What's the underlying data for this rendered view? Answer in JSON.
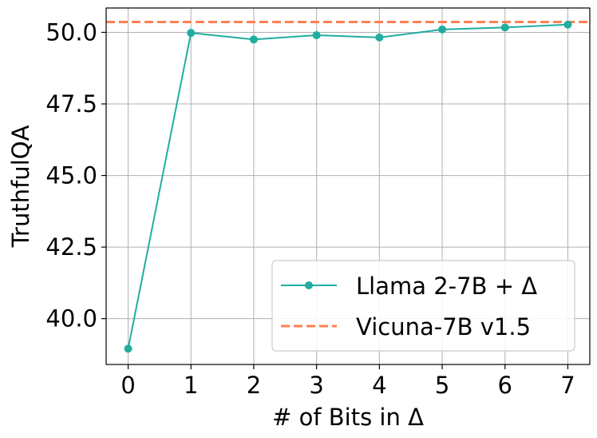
{
  "chart_data": {
    "type": "line",
    "title": "",
    "xlabel": "# of Bits in Δ",
    "ylabel": "TruthfulQA",
    "xlim": [
      -0.35,
      7.35
    ],
    "ylim": [
      38.4,
      50.85
    ],
    "x_ticks": [
      0,
      1,
      2,
      3,
      4,
      5,
      6,
      7
    ],
    "y_ticks": [
      40.0,
      42.5,
      45.0,
      47.5,
      50.0
    ],
    "x_tick_labels": [
      "0",
      "1",
      "2",
      "3",
      "4",
      "5",
      "6",
      "7"
    ],
    "y_tick_labels": [
      "40.0",
      "42.5",
      "45.0",
      "47.5",
      "50.0"
    ],
    "grid": true,
    "legend_position": "lower-right",
    "series": [
      {
        "name": "Llama 2-7B + Δ",
        "style": "solid-line-with-circle-markers",
        "color": "#20ada0",
        "x": [
          0,
          1,
          2,
          3,
          4,
          5,
          6,
          7
        ],
        "y": [
          38.95,
          49.98,
          49.75,
          49.9,
          49.82,
          50.1,
          50.17,
          50.27
        ]
      },
      {
        "name": "Vicuna-7B v1.5",
        "style": "dashed-horizontal-line",
        "color": "#ff7f50",
        "y": 50.36
      }
    ]
  }
}
